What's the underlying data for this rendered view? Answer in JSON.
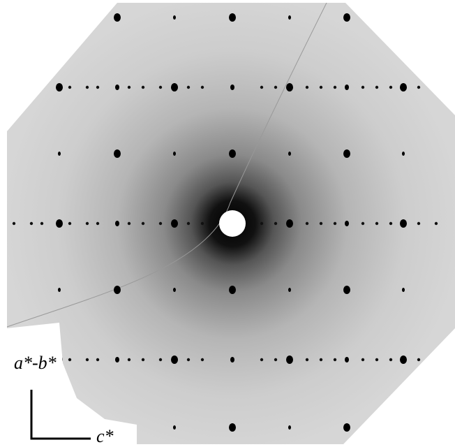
{
  "labels": {
    "vertical_axis": "a*-b*",
    "horizontal_axis": "c*"
  }
}
